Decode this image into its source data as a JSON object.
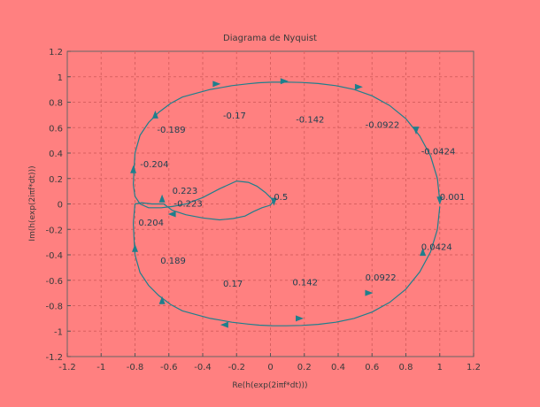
{
  "chart_data": {
    "type": "line",
    "title": "Diagrama de Nyquist",
    "xlabel": "Re(h(exp(2iπf*dt)))",
    "ylabel": "Im(h(exp(2iπf*dt)))",
    "xlim": [
      -1.2,
      1.2
    ],
    "ylim": [
      -1.2,
      1.2
    ],
    "xticks": [
      "-1.2",
      "-1",
      "-0.8",
      "-0.6",
      "-0.4",
      "-0.2",
      "0",
      "0.2",
      "0.4",
      "0.6",
      "0.8",
      "1",
      "1.2"
    ],
    "yticks": [
      "-1.2",
      "-1",
      "-0.8",
      "-0.6",
      "-0.4",
      "-0.2",
      "0",
      "0.2",
      "0.4",
      "0.6",
      "0.8",
      "1",
      "1.2"
    ],
    "grid": true,
    "line_color": "#1f7f8c",
    "series": [
      {
        "x": [
          1.0,
          0.986,
          0.946,
          0.882,
          0.8,
          0.704,
          0.6,
          0.493,
          0.386,
          0.282,
          0.184,
          0.092,
          0.009,
          -0.066,
          -0.132,
          -0.228,
          -0.3,
          -0.355,
          -0.44,
          -0.52,
          -0.59,
          -0.66,
          -0.72,
          -0.77,
          -0.8,
          -0.806,
          -0.81,
          -0.8,
          -0.77,
          -0.72,
          -0.645,
          -0.58,
          -0.5,
          -0.4,
          -0.3,
          -0.2,
          -0.13,
          -0.08,
          -0.03,
          0.0,
          0.02,
          0.0,
          -0.05,
          -0.1,
          -0.15,
          -0.22,
          -0.3,
          -0.4,
          -0.5,
          -0.58,
          -0.63,
          -0.7,
          -0.76,
          -0.8,
          -0.81,
          -0.806,
          -0.8,
          -0.77,
          -0.72,
          -0.66,
          -0.59,
          -0.52,
          -0.44,
          -0.355,
          -0.3,
          -0.228,
          -0.132,
          -0.066,
          0.009,
          0.092,
          0.184,
          0.282,
          0.386,
          0.493,
          0.6,
          0.704,
          0.8,
          0.882,
          0.946,
          0.986,
          1.0
        ],
        "y": [
          0.02,
          0.2,
          0.376,
          0.534,
          0.67,
          0.774,
          0.85,
          0.9,
          0.93,
          0.947,
          0.955,
          0.958,
          0.957,
          0.953,
          0.945,
          0.93,
          0.913,
          0.9,
          0.87,
          0.84,
          0.79,
          0.72,
          0.64,
          0.54,
          0.4,
          0.27,
          0.15,
          0.06,
          0.0,
          -0.03,
          -0.03,
          -0.02,
          0.0,
          0.05,
          0.12,
          0.18,
          0.17,
          0.14,
          0.09,
          0.05,
          0.03,
          -0.01,
          -0.03,
          -0.06,
          -0.095,
          -0.115,
          -0.125,
          -0.11,
          -0.085,
          -0.05,
          0.0,
          0.0,
          0.01,
          0.0,
          -0.15,
          -0.27,
          -0.4,
          -0.54,
          -0.64,
          -0.72,
          -0.79,
          -0.84,
          -0.87,
          -0.9,
          -0.913,
          -0.93,
          -0.945,
          -0.953,
          -0.957,
          -0.958,
          -0.955,
          -0.947,
          -0.93,
          -0.9,
          -0.85,
          -0.774,
          -0.67,
          -0.534,
          -0.376,
          -0.2,
          -0.02
        ]
      }
    ],
    "markers": [
      {
        "label": "0.001",
        "x": 1.0,
        "y": 0.03,
        "dir": "down"
      },
      {
        "label": "-0.0424",
        "x": 0.86,
        "y": 0.58,
        "dir": "down"
      },
      {
        "label": "-0.0922",
        "x": 0.52,
        "y": 0.92,
        "dir": "right"
      },
      {
        "label": "-0.142",
        "x": 0.08,
        "y": 0.965,
        "dir": "right"
      },
      {
        "label": "-0.17",
        "x": -0.32,
        "y": 0.943,
        "dir": "right"
      },
      {
        "label": "-0.189",
        "x": -0.68,
        "y": 0.7,
        "dir": "up"
      },
      {
        "label": "-0.204",
        "x": -0.81,
        "y": 0.27,
        "dir": "up"
      },
      {
        "label": "-0.223",
        "x": -0.58,
        "y": -0.08,
        "dir": "left"
      },
      {
        "label": "0.5",
        "x": 0.02,
        "y": 0.02,
        "dir": "down"
      },
      {
        "label": "0.223",
        "x": -0.64,
        "y": 0.04,
        "dir": "up"
      },
      {
        "label": "0.204",
        "x": -0.8,
        "y": -0.35,
        "dir": "up"
      },
      {
        "label": "0.189",
        "x": -0.64,
        "y": -0.76,
        "dir": "up"
      },
      {
        "label": "0.17",
        "x": -0.27,
        "y": -0.95,
        "dir": "left"
      },
      {
        "label": "0.142",
        "x": 0.17,
        "y": -0.9,
        "dir": "right"
      },
      {
        "label": "0.0922",
        "x": 0.58,
        "y": -0.7,
        "dir": "right"
      },
      {
        "label": "0.0424",
        "x": 0.9,
        "y": -0.38,
        "dir": "up"
      }
    ],
    "point_labels": [
      {
        "text": "0.001",
        "x": 1.0,
        "y": 0.03
      },
      {
        "text": "-0.0424",
        "x": 0.89,
        "y": 0.39
      },
      {
        "text": "-0.0922",
        "x": 0.56,
        "y": 0.6
      },
      {
        "text": "-0.142",
        "x": 0.15,
        "y": 0.64
      },
      {
        "text": "-0.17",
        "x": -0.28,
        "y": 0.67
      },
      {
        "text": "-0.189",
        "x": -0.67,
        "y": 0.56
      },
      {
        "text": "-0.204",
        "x": -0.77,
        "y": 0.29
      },
      {
        "text": "-0.223",
        "x": -0.57,
        "y": -0.02
      },
      {
        "text": "0.5",
        "x": 0.02,
        "y": 0.03
      },
      {
        "text": "0.223",
        "x": -0.58,
        "y": 0.08
      },
      {
        "text": "0.204",
        "x": -0.78,
        "y": -0.17
      },
      {
        "text": "0.189",
        "x": -0.65,
        "y": -0.47
      },
      {
        "text": "0.17",
        "x": -0.28,
        "y": -0.65
      },
      {
        "text": "0.142",
        "x": 0.13,
        "y": -0.64
      },
      {
        "text": "0.0922",
        "x": 0.56,
        "y": -0.6
      },
      {
        "text": "0.0424",
        "x": 0.89,
        "y": -0.36
      }
    ]
  }
}
